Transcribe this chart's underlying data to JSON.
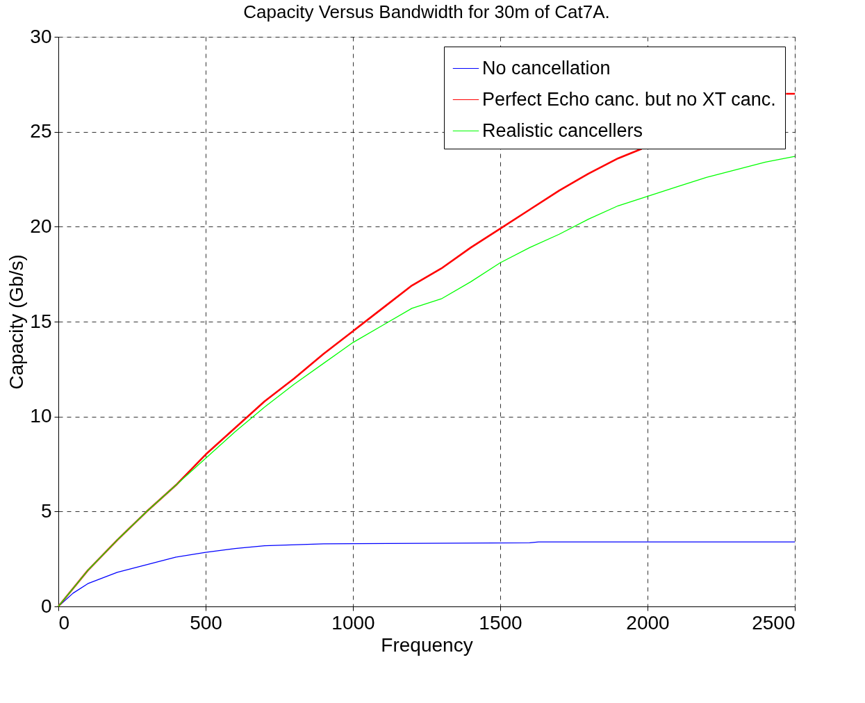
{
  "chart_data": {
    "type": "line",
    "title": "Capacity Versus Bandwidth for 30m of Cat7A.",
    "xlabel": "Frequency",
    "ylabel": "Capacity (Gb/s)",
    "xlim": [
      0,
      2500
    ],
    "ylim": [
      0,
      30
    ],
    "xticks": [
      0,
      500,
      1000,
      1500,
      2000,
      2500
    ],
    "yticks": [
      0,
      5,
      10,
      15,
      20,
      25,
      30
    ],
    "grid": true,
    "legend": "top right",
    "line_style": "solid",
    "series": [
      {
        "name": "No cancellation",
        "color": "#0000ff",
        "x": [
          0,
          50,
          100,
          200,
          300,
          400,
          500,
          600,
          700,
          900,
          1600,
          1630,
          2500
        ],
        "values": [
          0,
          0.7,
          1.2,
          1.8,
          2.2,
          2.6,
          2.85,
          3.05,
          3.2,
          3.3,
          3.35,
          3.4,
          3.4
        ]
      },
      {
        "name": "Perfect Echo canc. but no XT canc.",
        "color": "#ff0000",
        "x": [
          0,
          100,
          200,
          300,
          400,
          500,
          600,
          700,
          800,
          900,
          1000,
          1100,
          1200,
          1300,
          1400,
          1500,
          1600,
          1700,
          1800,
          1900,
          1980,
          2200,
          2470,
          2500
        ],
        "values": [
          0,
          1.9,
          3.5,
          5.0,
          6.4,
          8.0,
          9.4,
          10.8,
          12.0,
          13.3,
          14.5,
          15.7,
          16.9,
          17.8,
          18.9,
          19.9,
          20.9,
          21.9,
          22.8,
          23.6,
          24.1,
          null,
          27.0,
          27.0
        ]
      },
      {
        "name": "Realistic cancellers",
        "color": "#00ff00",
        "x": [
          0,
          100,
          200,
          300,
          400,
          500,
          600,
          700,
          800,
          900,
          1000,
          1100,
          1200,
          1300,
          1400,
          1500,
          1600,
          1700,
          1800,
          1900,
          2000,
          2100,
          2200,
          2300,
          2400,
          2500
        ],
        "values": [
          0,
          1.9,
          3.5,
          5.0,
          6.4,
          7.8,
          9.2,
          10.5,
          11.7,
          12.8,
          13.9,
          14.8,
          15.7,
          16.2,
          17.1,
          18.1,
          18.9,
          19.6,
          20.4,
          21.1,
          21.6,
          22.1,
          22.6,
          23.0,
          23.4,
          23.7
        ]
      }
    ]
  }
}
